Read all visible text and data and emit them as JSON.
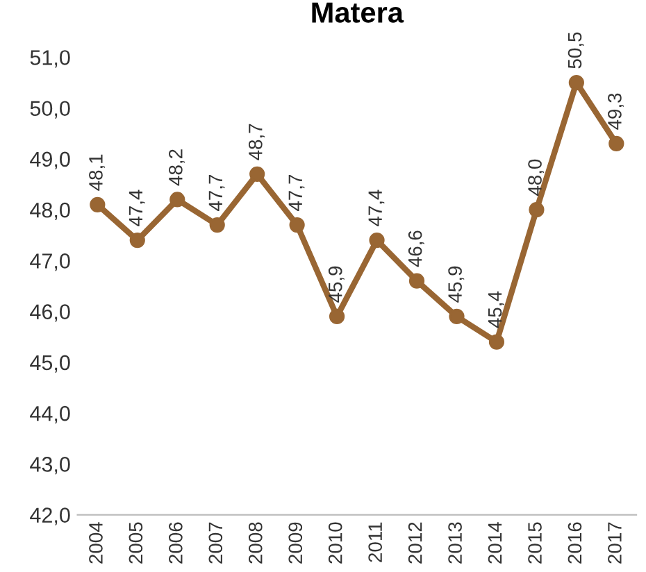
{
  "chart_data": {
    "type": "line",
    "title": "Matera",
    "categories": [
      "2004",
      "2005",
      "2006",
      "2007",
      "2008",
      "2009",
      "2010",
      "2011",
      "2012",
      "2013",
      "2014",
      "2015",
      "2016",
      "2017"
    ],
    "series": [
      {
        "color": "#996633",
        "values": [
          48.1,
          47.4,
          48.2,
          47.7,
          48.7,
          47.7,
          45.9,
          47.4,
          46.6,
          45.9,
          45.4,
          48.0,
          50.5,
          49.3
        ],
        "value_labels": [
          "48,1",
          "47,4",
          "48,2",
          "47,7",
          "48,7",
          "47,7",
          "45,9",
          "47,4",
          "46,6",
          "45,9",
          "45,4",
          "48,0",
          "50,5",
          "49,3"
        ]
      }
    ],
    "ylim": [
      42,
      51
    ],
    "yticks": [
      {
        "value": 42,
        "label": "42,0"
      },
      {
        "value": 43,
        "label": "43,0"
      },
      {
        "value": 44,
        "label": "44,0"
      },
      {
        "value": 45,
        "label": "45,0"
      },
      {
        "value": 46,
        "label": "46,0"
      },
      {
        "value": 47,
        "label": "47,0"
      },
      {
        "value": 48,
        "label": "48,0"
      },
      {
        "value": 49,
        "label": "49,0"
      },
      {
        "value": 50,
        "label": "50,0"
      },
      {
        "value": 51,
        "label": "51,0"
      }
    ],
    "grid": false,
    "legend": false,
    "marker": "circle",
    "line_style": "solid"
  }
}
